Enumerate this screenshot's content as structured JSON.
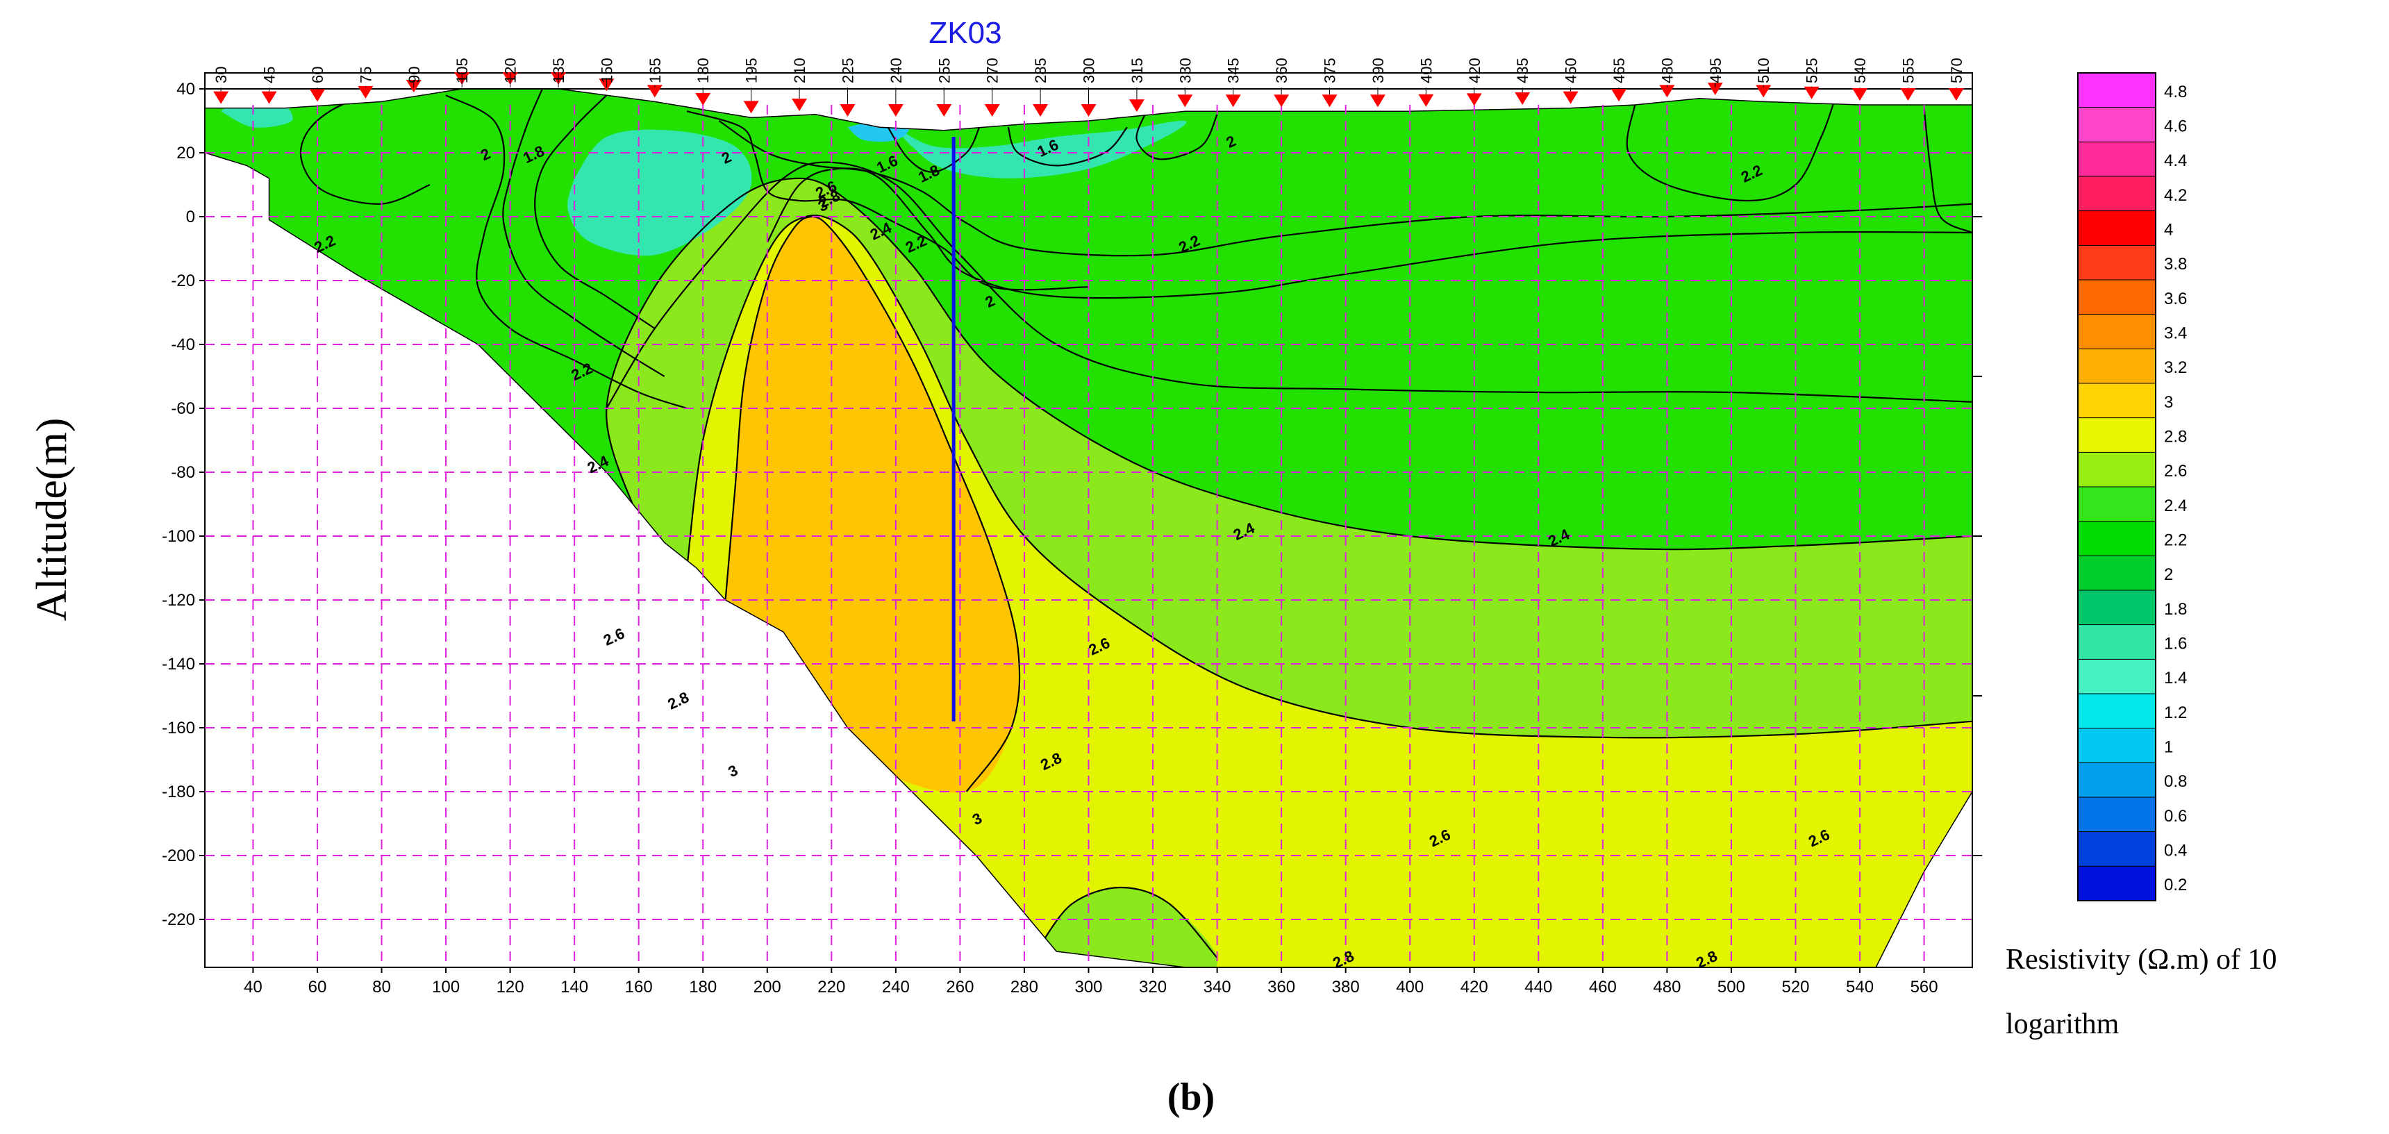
{
  "figure_label": "(b)",
  "chart_data": {
    "type": "heatmap",
    "title": "ZK03",
    "borehole_label": "ZK03",
    "xlabel": "",
    "ylabel": "Altitude(m)",
    "xlim": [
      25,
      575
    ],
    "ylim": [
      -235,
      45
    ],
    "grid": true,
    "x_ticks": [
      40,
      60,
      80,
      100,
      120,
      140,
      160,
      180,
      200,
      220,
      240,
      260,
      280,
      300,
      320,
      340,
      360,
      380,
      400,
      420,
      440,
      460,
      480,
      500,
      520,
      540,
      560
    ],
    "y_ticks": [
      40,
      20,
      0,
      -20,
      -40,
      -60,
      -80,
      -100,
      -120,
      -140,
      -160,
      -180,
      -200,
      -220
    ],
    "stations": [
      30,
      45,
      60,
      75,
      90,
      105,
      120,
      135,
      150,
      165,
      180,
      195,
      210,
      225,
      240,
      255,
      270,
      285,
      300,
      315,
      330,
      345,
      360,
      375,
      390,
      405,
      420,
      435,
      450,
      465,
      480,
      495,
      510,
      525,
      540,
      555,
      570
    ],
    "borehole": {
      "name": "ZK03",
      "x": 258,
      "top": 25,
      "bottom": -158
    },
    "contour_labels": [
      {
        "text": "2",
        "x": 113,
        "y": 18
      },
      {
        "text": "1.8",
        "x": 128,
        "y": 18
      },
      {
        "text": "2",
        "x": 188,
        "y": 17
      },
      {
        "text": "2.2",
        "x": 63,
        "y": -10
      },
      {
        "text": "2.2",
        "x": 143,
        "y": -50
      },
      {
        "text": "2.4",
        "x": 148,
        "y": -79
      },
      {
        "text": "2.6",
        "x": 153,
        "y": -133
      },
      {
        "text": "2.8",
        "x": 173,
        "y": -153
      },
      {
        "text": "3",
        "x": 190,
        "y": -175
      },
      {
        "text": "2.6",
        "x": 219,
        "y": 7
      },
      {
        "text": "2.8",
        "x": 220,
        "y": 4
      },
      {
        "text": "3",
        "x": 218,
        "y": 2
      },
      {
        "text": "1.6",
        "x": 238,
        "y": 15
      },
      {
        "text": "1.8",
        "x": 251,
        "y": 12
      },
      {
        "text": "2.4",
        "x": 236,
        "y": -6
      },
      {
        "text": "2.2",
        "x": 247,
        "y": -10
      },
      {
        "text": "2",
        "x": 270,
        "y": -28
      },
      {
        "text": "1.6",
        "x": 288,
        "y": 20
      },
      {
        "text": "2",
        "x": 345,
        "y": 22
      },
      {
        "text": "2.2",
        "x": 332,
        "y": -10
      },
      {
        "text": "2.2",
        "x": 507,
        "y": 12
      },
      {
        "text": "2.4",
        "x": 349,
        "y": -100
      },
      {
        "text": "2.4",
        "x": 447,
        "y": -102
      },
      {
        "text": "2.6",
        "x": 304,
        "y": -136
      },
      {
        "text": "2.8",
        "x": 289,
        "y": -172
      },
      {
        "text": "3",
        "x": 266,
        "y": -190
      },
      {
        "text": "2.6",
        "x": 410,
        "y": -196
      },
      {
        "text": "2.6",
        "x": 528,
        "y": -196
      },
      {
        "text": "2.8",
        "x": 380,
        "y": -277
      },
      {
        "text": "2.8",
        "x": 493,
        "y": -290
      }
    ],
    "colorbar": {
      "label": "Resistivity (Ω.m) of 10 logarithm",
      "label_line1": "Resistivity (Ω.m) of 10",
      "label_line2": "logarithm",
      "ticks": [
        "4.8",
        "4.6",
        "4.4",
        "4.2",
        "4",
        "3.8",
        "3.6",
        "3.4",
        "3.2",
        "3",
        "2.8",
        "2.6",
        "2.4",
        "2.2",
        "2",
        "1.8",
        "1.6",
        "1.4",
        "1.2",
        "1",
        "0.8",
        "0.6",
        "0.4",
        "0.2"
      ],
      "colors": [
        "#ff33ff",
        "#ff44cc",
        "#ff2a99",
        "#ff1f5e",
        "#ff0000",
        "#ff3b1a",
        "#ff6a00",
        "#ff8f00",
        "#ffb000",
        "#ffd400",
        "#e6f500",
        "#99ee11",
        "#33e51a",
        "#00dd00",
        "#00ce2a",
        "#00c86a",
        "#33e6a6",
        "#44f2c4",
        "#00e8e8",
        "#00c8f0",
        "#00a0ee",
        "#0074e6",
        "#0040dd",
        "#0010dd"
      ]
    }
  },
  "colors": {
    "ground_green": "#22e000",
    "gridline": "#dd22dd",
    "contour": "#000000",
    "borehole": "#1010ee",
    "station_marker": "#ff0000"
  }
}
